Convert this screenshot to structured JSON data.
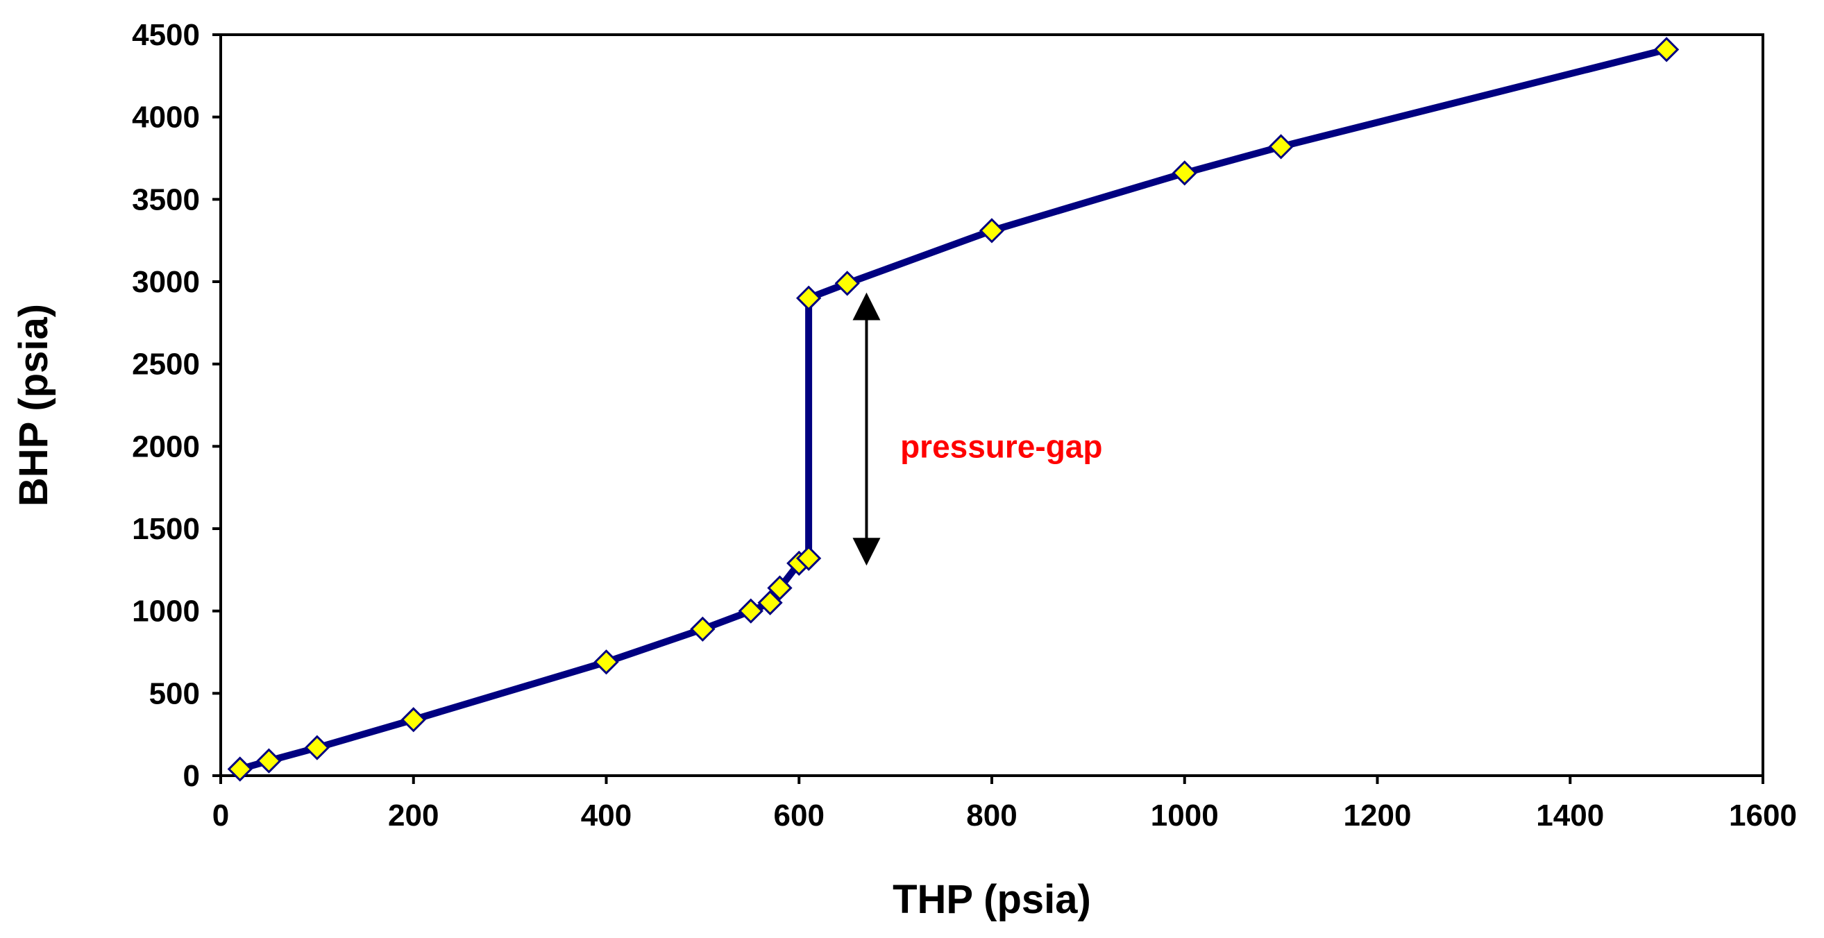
{
  "chart_data": {
    "type": "line",
    "title": "",
    "xlabel": "THP (psia)",
    "ylabel": "BHP (psia)",
    "xlim": [
      0,
      1600
    ],
    "ylim": [
      0,
      4500
    ],
    "xticks": [
      0,
      200,
      400,
      600,
      800,
      1000,
      1200,
      1400,
      1600
    ],
    "yticks": [
      0,
      500,
      1000,
      1500,
      2000,
      2500,
      3000,
      3500,
      4000,
      4500
    ],
    "grid": false,
    "legend": "none",
    "series": [
      {
        "name": "BHP vs THP",
        "line_color": "#000080",
        "marker": "diamond",
        "marker_color": "#FFFF00",
        "points": [
          [
            20,
            40
          ],
          [
            50,
            90
          ],
          [
            100,
            170
          ],
          [
            200,
            340
          ],
          [
            400,
            690
          ],
          [
            500,
            890
          ],
          [
            550,
            1000
          ],
          [
            570,
            1050
          ],
          [
            580,
            1140
          ],
          [
            600,
            1290
          ],
          [
            610,
            1320
          ],
          [
            610,
            2900
          ],
          [
            650,
            2990
          ],
          [
            800,
            3310
          ],
          [
            1000,
            3660
          ],
          [
            1100,
            3820
          ],
          [
            1500,
            4410
          ]
        ]
      }
    ],
    "annotations": [
      {
        "text": "pressure-gap",
        "color": "#FF0000",
        "x": 705,
        "y": 2000,
        "arrow": {
          "x": 670,
          "y_from": 2850,
          "y_to": 1360
        }
      }
    ]
  }
}
